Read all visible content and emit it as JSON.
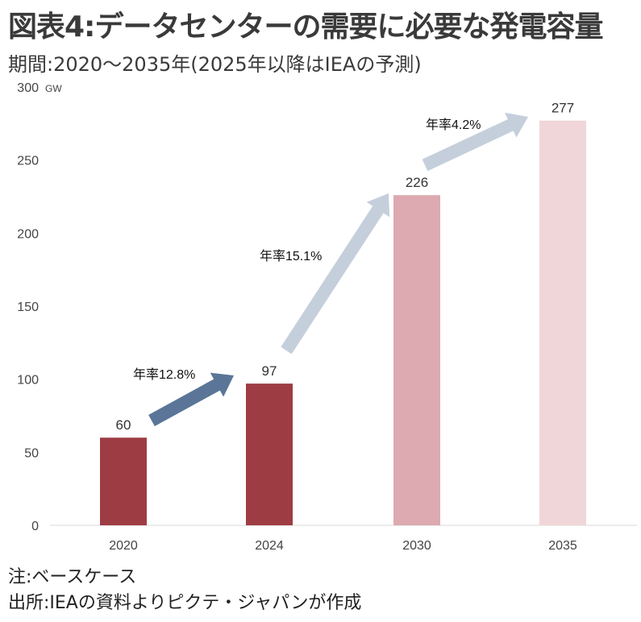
{
  "title": "図表4:データセンターの需要に必要な発電容量",
  "subtitle": "期間:2020～2035年(2025年以降はIEAの予測)",
  "notes": [
    "注:ベースケース",
    "出所:IEAの資料よりピクテ・ジャパンが作成"
  ],
  "chart_data": {
    "type": "bar",
    "unit": "GW",
    "categories": [
      "2020",
      "2024",
      "2030",
      "2035"
    ],
    "values": [
      60,
      97,
      226,
      277
    ],
    "bar_colors": [
      "#9e3c44",
      "#9e3c44",
      "#dcaab0",
      "#f0d6d8"
    ],
    "ylim": [
      0,
      300
    ],
    "yticks": [
      0,
      50,
      100,
      150,
      200,
      250,
      300
    ],
    "grid": false,
    "annotations": [
      {
        "label": "年率12.8%",
        "from": "2020",
        "to": "2024",
        "color": "#5a7597"
      },
      {
        "label": "年率15.1%",
        "from": "2024",
        "to": "2030",
        "color": "#c5cfdc"
      },
      {
        "label": "年率4.2%",
        "from": "2030",
        "to": "2035",
        "color": "#c5cfdc"
      }
    ]
  }
}
